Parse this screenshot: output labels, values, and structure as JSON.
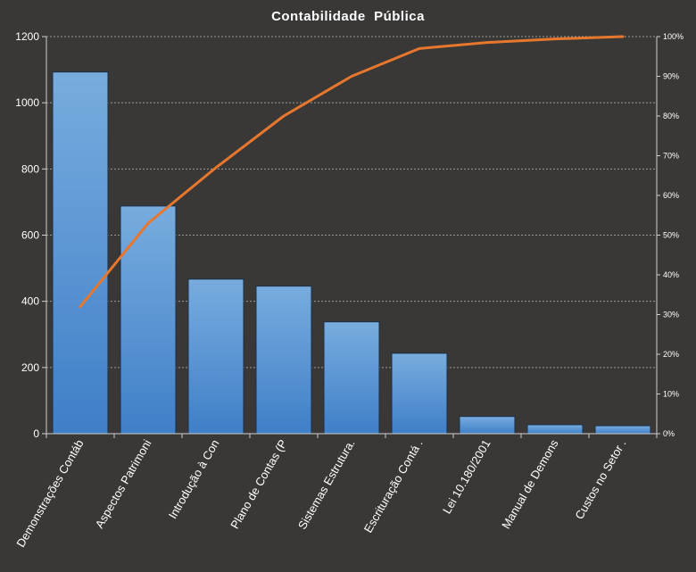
{
  "chart_data": {
    "type": "bar",
    "title": "Contabilidade  Pública",
    "categories": [
      "Demonstrações Contáb",
      "Aspectos Patrimoni",
      "Introdução à Con",
      "Plano de Contas (P",
      "Sistemas Estrutura.",
      "Escrituração Contá .",
      "Lei 10.180/2001",
      "Manual de Demons",
      "Custos no Setor ."
    ],
    "series": [
      {
        "values": [
          1093,
          688,
          467,
          446,
          338,
          243,
          52,
          27,
          24
        ]
      }
    ],
    "cumulative_percent": [
      32,
      53,
      67,
      80,
      90,
      97,
      98.5,
      99.4,
      100
    ],
    "ylim": [
      0,
      1200
    ],
    "yticks": [
      "0",
      "200",
      "400",
      "600",
      "800",
      "1000",
      "1200"
    ],
    "y2lim": [
      0,
      100
    ],
    "y2ticks": [
      "0%",
      "10%",
      "20%",
      "30%",
      "40%",
      "50%",
      "60%",
      "70%",
      "80%",
      "90%",
      "100%"
    ],
    "grid": true,
    "legend": "none",
    "colors": {
      "background": "#3a3836",
      "bar_top": "#78acde",
      "bar_bottom": "#3f7fc8",
      "bar_stroke": "#1b2f45",
      "line": "#e8772e",
      "grid": "#9a9a9a",
      "axis": "#cfcfcf",
      "text": "#ffffff"
    }
  }
}
